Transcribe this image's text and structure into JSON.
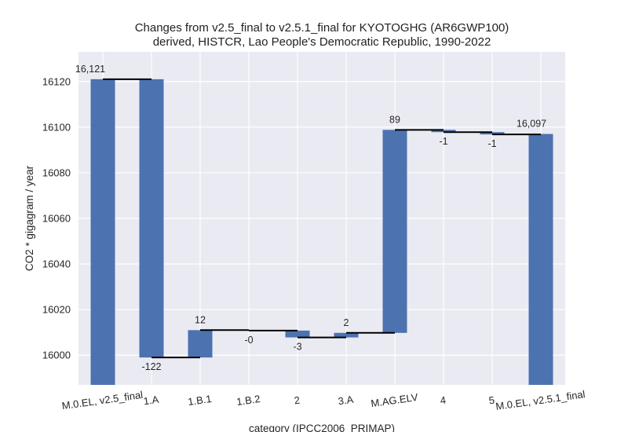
{
  "chart_data": {
    "type": "bar",
    "subtype": "waterfall",
    "title": "Changes from v2.5_final to v2.5.1_final for KYOTOGHG (AR6GWP100)",
    "subtitle": "derived, HISTCR, Lao People's Democratic Republic, 1990-2022",
    "xlabel": "category (IPCC2006_PRIMAP)",
    "ylabel": "CO2 * gigagram / year",
    "ylim": [
      15987,
      16133
    ],
    "yticks": [
      16000,
      16020,
      16040,
      16060,
      16080,
      16100,
      16120
    ],
    "grid": true,
    "legend": "none",
    "categories": [
      "M.0.EL, v2.5_final",
      "1.A",
      "1.B.1",
      "1.B.2",
      "2",
      "3.A",
      "M.AG.ELV",
      "4",
      "5",
      "M.0.EL, v2.5.1_final"
    ],
    "kinds": [
      "total",
      "delta",
      "delta",
      "delta",
      "delta",
      "delta",
      "delta",
      "delta",
      "delta",
      "total"
    ],
    "values": [
      16121,
      -122,
      12,
      -0.2,
      -3,
      2,
      89,
      -1,
      -1,
      16097
    ],
    "data_labels": [
      "16,121",
      "-122",
      "12",
      "-0",
      "-3",
      "2",
      "89",
      "-1",
      "-1",
      "16,097"
    ],
    "bar_color": "#4c72b0",
    "plot_background": "#eaeaf2",
    "connector_color": "#000000"
  }
}
